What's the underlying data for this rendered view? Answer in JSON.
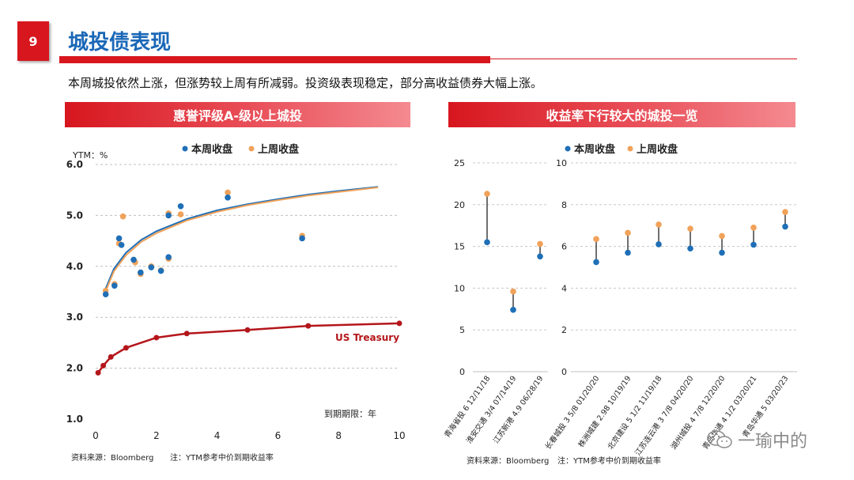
{
  "page": {
    "number": "9",
    "title": "城投债表现",
    "summary": "本周城投依然上涨，但涨势较上周有所减弱。投资级表现稳定，部分高收益债券大幅上涨。",
    "watermark": "一瑜中的"
  },
  "colors": {
    "this_week": "#1f6fb7",
    "last_week": "#f0a25a",
    "treasury": "#b4161b",
    "accent": "#d7161e",
    "title_blue": "#1a67b7"
  },
  "chart_data": [
    {
      "type": "scatter",
      "title": "惠誉评级A-级以上城投",
      "ylabel": "YTM：%",
      "xlabel": "到期期限：年",
      "xlim": [
        0,
        10
      ],
      "ylim": [
        1.0,
        6.0
      ],
      "xticks": [
        "0",
        "2",
        "4",
        "6",
        "8",
        "10"
      ],
      "yticks": [
        "1.0",
        "2.0",
        "3.0",
        "4.0",
        "5.0",
        "6.0"
      ],
      "legend": [
        "本周收盘",
        "上周收盘"
      ],
      "legend_position": "top",
      "series": [
        {
          "name": "本周收盘",
          "points": [
            [
              0.33,
              3.45
            ],
            [
              0.62,
              3.62
            ],
            [
              0.77,
              4.55
            ],
            [
              0.85,
              4.42
            ],
            [
              1.25,
              4.13
            ],
            [
              1.48,
              3.88
            ],
            [
              1.83,
              3.98
            ],
            [
              2.15,
              3.91
            ],
            [
              2.4,
              5.0
            ],
            [
              2.4,
              4.18
            ],
            [
              2.8,
              5.18
            ],
            [
              4.35,
              5.35
            ],
            [
              6.8,
              4.55
            ]
          ]
        },
        {
          "name": "上周收盘",
          "points": [
            [
              0.33,
              3.52
            ],
            [
              0.62,
              3.65
            ],
            [
              0.77,
              4.45
            ],
            [
              0.9,
              4.98
            ],
            [
              1.3,
              4.08
            ],
            [
              1.48,
              3.85
            ],
            [
              1.83,
              4.0
            ],
            [
              2.15,
              3.92
            ],
            [
              2.4,
              5.04
            ],
            [
              2.4,
              4.15
            ],
            [
              2.8,
              5.02
            ],
            [
              4.35,
              5.45
            ],
            [
              6.8,
              4.6
            ]
          ]
        }
      ],
      "curves": [
        {
          "name": "本周拟合",
          "x": [
            0.3,
            0.6,
            1.0,
            1.5,
            2.0,
            3.0,
            4.0,
            5.0,
            6.0,
            7.0,
            8.0,
            9.3
          ],
          "y": [
            3.52,
            3.95,
            4.27,
            4.52,
            4.69,
            4.93,
            5.1,
            5.22,
            5.32,
            5.41,
            5.48,
            5.56
          ]
        },
        {
          "name": "上周拟合",
          "x": [
            0.3,
            0.6,
            1.0,
            1.5,
            2.0,
            3.0,
            4.0,
            5.0,
            6.0,
            7.0,
            8.0,
            9.3
          ],
          "y": [
            3.47,
            3.9,
            4.22,
            4.48,
            4.65,
            4.9,
            5.07,
            5.2,
            5.3,
            5.39,
            5.46,
            5.55
          ]
        }
      ],
      "treasury": {
        "name": "US Treasury",
        "x": [
          0.08,
          0.25,
          0.5,
          1,
          2,
          3,
          5,
          7,
          10
        ],
        "y": [
          1.91,
          2.05,
          2.22,
          2.4,
          2.6,
          2.68,
          2.75,
          2.83,
          2.88
        ]
      },
      "source": "资料来源：Bloomberg",
      "note": "注：YTM参考中价到期收益率"
    },
    {
      "type": "dumbbell",
      "title": "收益率下行较大的城投一览",
      "legend": [
        "本周收盘",
        "上周收盘"
      ],
      "legend_position": "top",
      "left_panel": {
        "ylim": [
          0,
          25
        ],
        "yticks": [
          "0",
          "5",
          "10",
          "15",
          "20",
          "25"
        ],
        "categories": [
          "青海省投 6 12/11/18",
          "淮安交通 3/4 07/14/19",
          "江苏新港 4.9 06/28/19"
        ],
        "this_week": [
          15.5,
          7.4,
          13.8
        ],
        "last_week": [
          21.3,
          9.6,
          15.3
        ]
      },
      "right_panel": {
        "ylim": [
          0,
          10
        ],
        "yticks": [
          "0",
          "2",
          "4",
          "6",
          "8",
          "10"
        ],
        "categories": [
          "长春城投 3 5/8 01/20/20",
          "株洲城建 2.98 10/19/19",
          "北京建设 5 1/2 11/19/18",
          "江苏连云港 3 7/8 04/20/20",
          "湖州城投 4 7/8 12/20/20",
          "青岛华通 4 1/2 03/20/21",
          "青岛华通 5 03/20/23"
        ],
        "this_week": [
          5.25,
          5.7,
          6.1,
          5.9,
          5.7,
          6.08,
          6.95
        ],
        "last_week": [
          6.35,
          6.65,
          7.05,
          6.85,
          6.5,
          6.9,
          7.65
        ]
      },
      "source": "资料来源：Bloomberg",
      "note": "注：YTM参考中价到期收益率"
    }
  ]
}
